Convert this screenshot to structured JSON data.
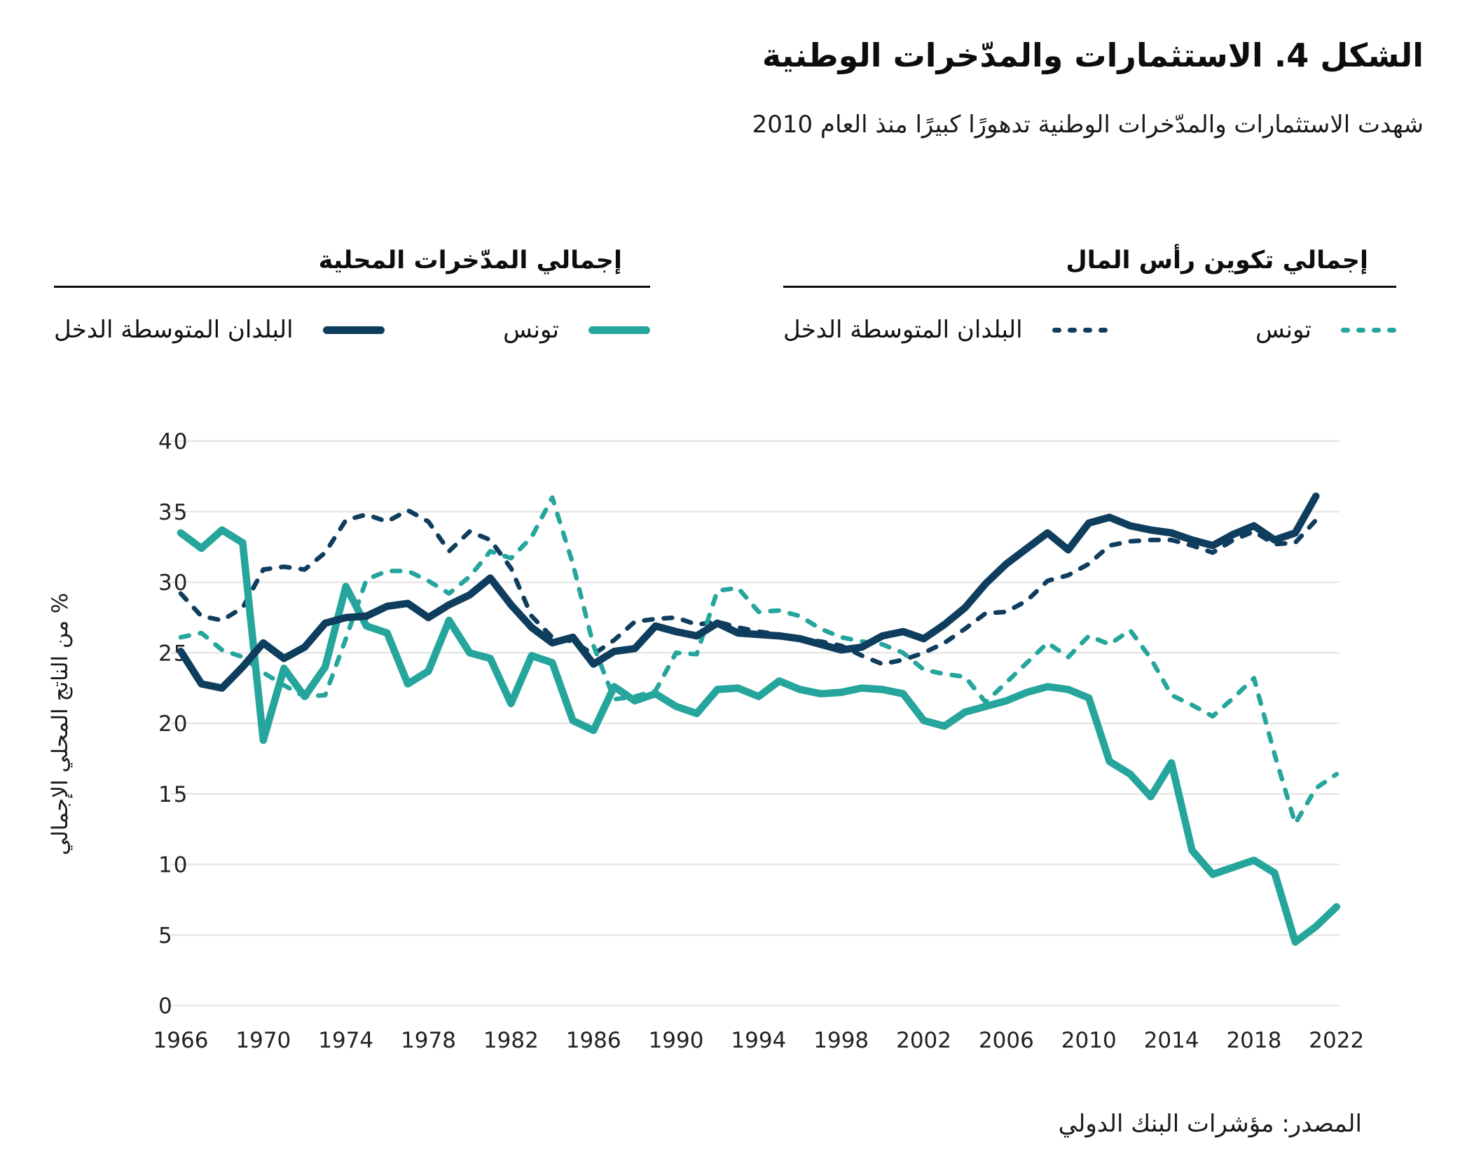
{
  "header": {
    "title": "الشكل 4. الاستثمارات والمدّخرات الوطنية",
    "subtitle": "شهدت الاستثمارات والمدّخرات الوطنية تدهورًا كبيرًا منذ العام 2010"
  },
  "legend": {
    "groups": [
      {
        "title": "إجمالي تكوين رأس المال",
        "items": [
          {
            "label": "تونس",
            "series": "tunisia_gcf"
          },
          {
            "label": "البلدان المتوسطة الدخل",
            "series": "mic_gcf"
          }
        ]
      },
      {
        "title": "إجمالي المدّخرات المحلية",
        "items": [
          {
            "label": "تونس",
            "series": "tunisia_savings"
          },
          {
            "label": "البلدان المتوسطة الدخل",
            "series": "mic_savings"
          }
        ]
      }
    ]
  },
  "source": "المصدر: مؤشرات البنك الدولي",
  "colors": {
    "navy": "#0e3d5d",
    "teal": "#25a59c",
    "gridline": "#e7e7e7",
    "text": "#222222"
  },
  "chart_data": {
    "type": "line",
    "title": "الشكل 4. الاستثمارات والمدّخرات الوطنية",
    "subtitle": "شهدت الاستثمارات والمدّخرات الوطنية تدهورًا كبيرًا منذ العام 2010",
    "xlabel": "",
    "ylabel": "% من الناتج المحلي الإجمالي",
    "ylim": [
      0,
      40
    ],
    "yticks": [
      0,
      5,
      10,
      15,
      20,
      25,
      30,
      35,
      40
    ],
    "xticks": [
      1966,
      1970,
      1974,
      1978,
      1982,
      1986,
      1990,
      1994,
      1998,
      2002,
      2006,
      2010,
      2014,
      2018,
      2022
    ],
    "grid": "horizontal",
    "legend_position": "top",
    "x": [
      1966,
      1967,
      1968,
      1969,
      1970,
      1971,
      1972,
      1973,
      1974,
      1975,
      1976,
      1977,
      1978,
      1979,
      1980,
      1981,
      1982,
      1983,
      1984,
      1985,
      1986,
      1987,
      1988,
      1989,
      1990,
      1991,
      1992,
      1993,
      1994,
      1995,
      1996,
      1997,
      1998,
      1999,
      2000,
      2001,
      2002,
      2003,
      2004,
      2005,
      2006,
      2007,
      2008,
      2009,
      2010,
      2011,
      2012,
      2013,
      2014,
      2015,
      2016,
      2017,
      2018,
      2019,
      2020,
      2021,
      2022
    ],
    "series": [
      {
        "name": "mic_gcf",
        "label": "البلدان المتوسطة الدخل",
        "group": "إجمالي تكوين رأس المال",
        "color": "#0e3d5d",
        "dash": true,
        "values": [
          29.2,
          27.6,
          27.3,
          28.2,
          30.9,
          31.1,
          30.9,
          32.1,
          34.4,
          34.8,
          34.3,
          35.1,
          34.3,
          32.2,
          33.6,
          33.0,
          31.0,
          27.6,
          26.1,
          25.8,
          24.9,
          25.9,
          27.2,
          27.4,
          27.5,
          27.0,
          27.2,
          26.8,
          26.5,
          26.3,
          26.0,
          25.8,
          25.5,
          24.8,
          24.2,
          24.5,
          25.0,
          25.7,
          26.7,
          27.8,
          27.9,
          28.7,
          30.1,
          30.5,
          31.3,
          32.6,
          32.9,
          33.0,
          33.0,
          32.6,
          32.1,
          33.0,
          33.6,
          32.7,
          32.8,
          34.4,
          null
        ]
      },
      {
        "name": "tunisia_gcf",
        "label": "تونس",
        "group": "إجمالي تكوين رأس المال",
        "color": "#25a59c",
        "dash": true,
        "values": [
          26.1,
          26.4,
          25.2,
          24.7,
          23.6,
          22.7,
          21.9,
          22.0,
          26.0,
          30.2,
          30.8,
          30.8,
          30.1,
          29.2,
          30.4,
          32.2,
          31.7,
          33.2,
          36.0,
          31.3,
          25.5,
          21.7,
          21.9,
          22.3,
          25.0,
          24.9,
          29.4,
          29.6,
          27.9,
          28.0,
          27.6,
          26.7,
          26.1,
          25.8,
          25.6,
          25.0,
          23.8,
          23.5,
          23.3,
          21.5,
          22.9,
          24.3,
          25.7,
          24.7,
          26.2,
          25.6,
          26.6,
          24.6,
          22.0,
          21.3,
          20.5,
          21.8,
          23.2,
          17.8,
          12.9,
          15.4,
          16.4
        ]
      },
      {
        "name": "tunisia_savings",
        "label": "تونس",
        "group": "إجمالي المدّخرات المحلية",
        "color": "#25a59c",
        "dash": false,
        "values": [
          33.5,
          32.4,
          33.7,
          32.8,
          18.8,
          23.9,
          21.9,
          24.0,
          29.7,
          26.9,
          26.4,
          22.8,
          23.7,
          27.3,
          25.0,
          24.6,
          21.4,
          24.8,
          24.3,
          20.2,
          19.5,
          22.6,
          21.6,
          22.1,
          21.2,
          20.7,
          22.4,
          22.5,
          21.9,
          23.0,
          22.4,
          22.1,
          22.2,
          22.5,
          22.4,
          22.1,
          20.2,
          19.8,
          20.8,
          21.2,
          21.6,
          22.2,
          22.6,
          22.4,
          21.8,
          17.3,
          16.4,
          14.8,
          17.2,
          11.0,
          9.3,
          9.8,
          10.3,
          9.4,
          4.5,
          5.6,
          7.0
        ]
      },
      {
        "name": "mic_savings",
        "label": "البلدان المتوسطة الدخل",
        "group": "إجمالي المدّخرات المحلية",
        "color": "#0e3d5d",
        "dash": false,
        "values": [
          25.1,
          22.8,
          22.5,
          24.0,
          25.7,
          24.6,
          25.4,
          27.1,
          27.5,
          27.6,
          28.3,
          28.5,
          27.5,
          28.4,
          29.1,
          30.3,
          28.4,
          26.8,
          25.7,
          26.1,
          24.2,
          25.1,
          25.3,
          26.9,
          26.5,
          26.2,
          27.1,
          26.4,
          26.3,
          26.2,
          26.0,
          25.6,
          25.2,
          25.4,
          26.2,
          26.5,
          26.0,
          27.0,
          28.2,
          29.9,
          31.3,
          32.4,
          33.5,
          32.3,
          34.2,
          34.6,
          34.0,
          33.7,
          33.5,
          33.0,
          32.6,
          33.4,
          34.0,
          33.0,
          33.5,
          36.1,
          null
        ]
      }
    ]
  }
}
